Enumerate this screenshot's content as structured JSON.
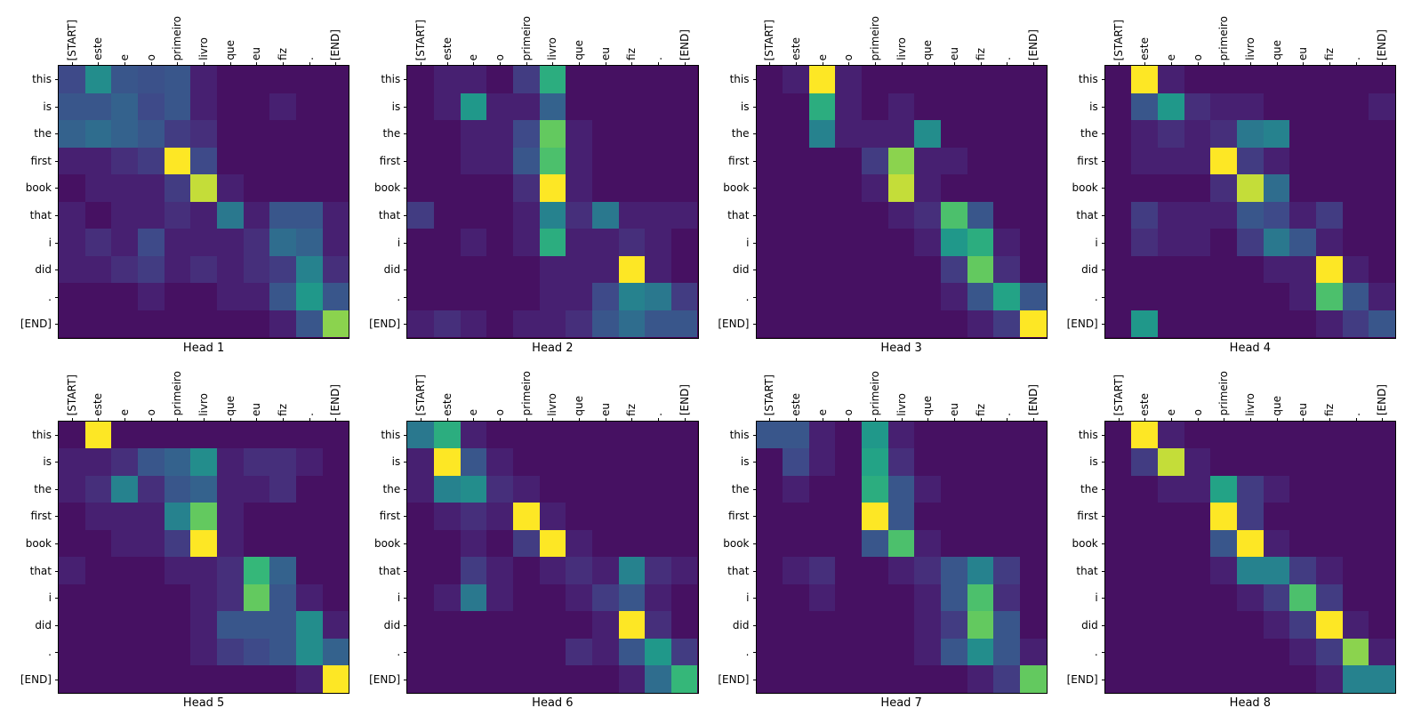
{
  "figure": {
    "background": "#ffffff",
    "text_color": "#000000",
    "colormap": "viridis",
    "colormap_low": "#440154",
    "colormap_high": "#fde725"
  },
  "chart_data": {
    "type": "heatmap",
    "layout": "2x4-grid",
    "x_labels": [
      "[START]",
      "este",
      "e",
      "o",
      "primeiro",
      "livro",
      "que",
      "eu",
      "fiz",
      ".",
      "[END]"
    ],
    "y_labels": [
      "this",
      "is",
      "the",
      "first",
      "book",
      "that",
      "i",
      "did",
      ".",
      "[END]"
    ],
    "value_range": [
      0,
      1
    ],
    "colormap": "viridis",
    "subplots": [
      {
        "title": "Head 1",
        "values": [
          [
            0.25,
            0.55,
            0.3,
            0.28,
            0.3,
            0.1,
            0.05,
            0.05,
            0.05,
            0.05,
            0.05
          ],
          [
            0.3,
            0.3,
            0.35,
            0.25,
            0.3,
            0.1,
            0.05,
            0.05,
            0.1,
            0.05,
            0.05
          ],
          [
            0.35,
            0.4,
            0.35,
            0.3,
            0.2,
            0.15,
            0.05,
            0.05,
            0.05,
            0.05,
            0.05
          ],
          [
            0.1,
            0.1,
            0.15,
            0.2,
            1.0,
            0.25,
            0.05,
            0.05,
            0.05,
            0.05,
            0.05
          ],
          [
            0.05,
            0.1,
            0.1,
            0.1,
            0.2,
            0.95,
            0.1,
            0.05,
            0.05,
            0.05,
            0.05
          ],
          [
            0.1,
            0.05,
            0.1,
            0.1,
            0.15,
            0.1,
            0.45,
            0.1,
            0.3,
            0.3,
            0.1
          ],
          [
            0.1,
            0.15,
            0.1,
            0.25,
            0.1,
            0.1,
            0.1,
            0.15,
            0.4,
            0.35,
            0.1
          ],
          [
            0.1,
            0.1,
            0.15,
            0.2,
            0.1,
            0.15,
            0.1,
            0.15,
            0.2,
            0.5,
            0.15
          ],
          [
            0.05,
            0.05,
            0.05,
            0.1,
            0.05,
            0.05,
            0.1,
            0.1,
            0.3,
            0.6,
            0.3
          ],
          [
            0.05,
            0.05,
            0.05,
            0.05,
            0.05,
            0.05,
            0.05,
            0.05,
            0.1,
            0.3,
            0.9
          ]
        ]
      },
      {
        "title": "Head 2",
        "values": [
          [
            0.05,
            0.1,
            0.1,
            0.05,
            0.2,
            0.7,
            0.05,
            0.05,
            0.05,
            0.05,
            0.05
          ],
          [
            0.05,
            0.1,
            0.6,
            0.1,
            0.1,
            0.35,
            0.05,
            0.05,
            0.05,
            0.05,
            0.05
          ],
          [
            0.05,
            0.05,
            0.1,
            0.1,
            0.25,
            0.85,
            0.1,
            0.05,
            0.05,
            0.05,
            0.05
          ],
          [
            0.05,
            0.05,
            0.1,
            0.1,
            0.3,
            0.8,
            0.1,
            0.05,
            0.05,
            0.05,
            0.05
          ],
          [
            0.05,
            0.05,
            0.05,
            0.05,
            0.15,
            1.0,
            0.1,
            0.05,
            0.05,
            0.05,
            0.05
          ],
          [
            0.2,
            0.05,
            0.05,
            0.05,
            0.1,
            0.5,
            0.15,
            0.45,
            0.1,
            0.1,
            0.1
          ],
          [
            0.05,
            0.05,
            0.1,
            0.05,
            0.1,
            0.7,
            0.1,
            0.1,
            0.15,
            0.1,
            0.05
          ],
          [
            0.05,
            0.05,
            0.05,
            0.05,
            0.05,
            0.1,
            0.1,
            0.1,
            1.0,
            0.1,
            0.05
          ],
          [
            0.05,
            0.05,
            0.05,
            0.05,
            0.05,
            0.1,
            0.1,
            0.25,
            0.5,
            0.45,
            0.2
          ],
          [
            0.1,
            0.15,
            0.1,
            0.05,
            0.1,
            0.1,
            0.15,
            0.3,
            0.4,
            0.3,
            0.3
          ]
        ]
      },
      {
        "title": "Head 3",
        "values": [
          [
            0.05,
            0.1,
            1.0,
            0.1,
            0.05,
            0.05,
            0.05,
            0.05,
            0.05,
            0.05,
            0.05
          ],
          [
            0.05,
            0.05,
            0.7,
            0.1,
            0.05,
            0.1,
            0.05,
            0.05,
            0.05,
            0.05,
            0.05
          ],
          [
            0.05,
            0.05,
            0.5,
            0.1,
            0.1,
            0.1,
            0.55,
            0.05,
            0.05,
            0.05,
            0.05
          ],
          [
            0.05,
            0.05,
            0.05,
            0.05,
            0.2,
            0.9,
            0.1,
            0.1,
            0.05,
            0.05,
            0.05
          ],
          [
            0.05,
            0.05,
            0.05,
            0.05,
            0.1,
            0.95,
            0.1,
            0.05,
            0.05,
            0.05,
            0.05
          ],
          [
            0.05,
            0.05,
            0.05,
            0.05,
            0.05,
            0.1,
            0.15,
            0.8,
            0.3,
            0.05,
            0.05
          ],
          [
            0.05,
            0.05,
            0.05,
            0.05,
            0.05,
            0.05,
            0.1,
            0.6,
            0.7,
            0.1,
            0.05
          ],
          [
            0.05,
            0.05,
            0.05,
            0.05,
            0.05,
            0.05,
            0.05,
            0.2,
            0.85,
            0.15,
            0.05
          ],
          [
            0.05,
            0.05,
            0.05,
            0.05,
            0.05,
            0.05,
            0.05,
            0.1,
            0.3,
            0.65,
            0.3
          ],
          [
            0.05,
            0.05,
            0.05,
            0.05,
            0.05,
            0.05,
            0.05,
            0.05,
            0.1,
            0.2,
            1.0
          ]
        ]
      },
      {
        "title": "Head 4",
        "values": [
          [
            0.05,
            1.0,
            0.1,
            0.05,
            0.05,
            0.05,
            0.05,
            0.05,
            0.05,
            0.05,
            0.05
          ],
          [
            0.05,
            0.3,
            0.6,
            0.15,
            0.1,
            0.1,
            0.05,
            0.05,
            0.05,
            0.05,
            0.1
          ],
          [
            0.05,
            0.1,
            0.15,
            0.1,
            0.15,
            0.45,
            0.5,
            0.05,
            0.05,
            0.05,
            0.05
          ],
          [
            0.05,
            0.1,
            0.1,
            0.1,
            1.0,
            0.2,
            0.1,
            0.05,
            0.05,
            0.05,
            0.05
          ],
          [
            0.05,
            0.05,
            0.05,
            0.05,
            0.15,
            0.95,
            0.4,
            0.05,
            0.05,
            0.05,
            0.05
          ],
          [
            0.05,
            0.2,
            0.1,
            0.1,
            0.1,
            0.3,
            0.25,
            0.1,
            0.2,
            0.05,
            0.05
          ],
          [
            0.05,
            0.15,
            0.1,
            0.1,
            0.05,
            0.2,
            0.45,
            0.3,
            0.1,
            0.05,
            0.05
          ],
          [
            0.05,
            0.05,
            0.05,
            0.05,
            0.05,
            0.05,
            0.1,
            0.1,
            1.0,
            0.1,
            0.05
          ],
          [
            0.05,
            0.05,
            0.05,
            0.05,
            0.05,
            0.05,
            0.05,
            0.1,
            0.8,
            0.3,
            0.1
          ],
          [
            0.05,
            0.6,
            0.05,
            0.05,
            0.05,
            0.05,
            0.05,
            0.05,
            0.1,
            0.2,
            0.3
          ]
        ]
      },
      {
        "title": "Head 5",
        "values": [
          [
            0.05,
            1.0,
            0.05,
            0.05,
            0.05,
            0.05,
            0.05,
            0.05,
            0.05,
            0.05,
            0.05
          ],
          [
            0.1,
            0.1,
            0.15,
            0.3,
            0.35,
            0.55,
            0.1,
            0.15,
            0.15,
            0.1,
            0.05
          ],
          [
            0.1,
            0.15,
            0.5,
            0.15,
            0.3,
            0.35,
            0.1,
            0.1,
            0.15,
            0.05,
            0.05
          ],
          [
            0.05,
            0.1,
            0.1,
            0.1,
            0.5,
            0.85,
            0.1,
            0.05,
            0.05,
            0.05,
            0.05
          ],
          [
            0.05,
            0.05,
            0.1,
            0.1,
            0.2,
            1.0,
            0.1,
            0.05,
            0.05,
            0.05,
            0.05
          ],
          [
            0.1,
            0.05,
            0.05,
            0.05,
            0.1,
            0.1,
            0.15,
            0.75,
            0.35,
            0.05,
            0.05
          ],
          [
            0.05,
            0.05,
            0.05,
            0.05,
            0.05,
            0.1,
            0.15,
            0.85,
            0.3,
            0.1,
            0.05
          ],
          [
            0.05,
            0.05,
            0.05,
            0.05,
            0.05,
            0.1,
            0.3,
            0.3,
            0.3,
            0.55,
            0.1
          ],
          [
            0.05,
            0.05,
            0.05,
            0.05,
            0.05,
            0.1,
            0.2,
            0.25,
            0.3,
            0.55,
            0.35
          ],
          [
            0.05,
            0.05,
            0.05,
            0.05,
            0.05,
            0.05,
            0.05,
            0.05,
            0.05,
            0.1,
            1.0
          ]
        ]
      },
      {
        "title": "Head 6",
        "values": [
          [
            0.45,
            0.7,
            0.1,
            0.05,
            0.05,
            0.05,
            0.05,
            0.05,
            0.05,
            0.05,
            0.05
          ],
          [
            0.1,
            1.0,
            0.3,
            0.1,
            0.05,
            0.05,
            0.05,
            0.05,
            0.05,
            0.05,
            0.05
          ],
          [
            0.1,
            0.5,
            0.55,
            0.15,
            0.1,
            0.05,
            0.05,
            0.05,
            0.05,
            0.05,
            0.05
          ],
          [
            0.05,
            0.1,
            0.15,
            0.1,
            1.0,
            0.1,
            0.05,
            0.05,
            0.05,
            0.05,
            0.05
          ],
          [
            0.05,
            0.05,
            0.1,
            0.05,
            0.2,
            1.0,
            0.1,
            0.05,
            0.05,
            0.05,
            0.05
          ],
          [
            0.05,
            0.05,
            0.2,
            0.1,
            0.05,
            0.1,
            0.15,
            0.1,
            0.5,
            0.15,
            0.1
          ],
          [
            0.05,
            0.1,
            0.45,
            0.1,
            0.05,
            0.05,
            0.1,
            0.2,
            0.3,
            0.1,
            0.05
          ],
          [
            0.05,
            0.05,
            0.05,
            0.05,
            0.05,
            0.05,
            0.05,
            0.1,
            1.0,
            0.15,
            0.05
          ],
          [
            0.05,
            0.05,
            0.05,
            0.05,
            0.05,
            0.05,
            0.15,
            0.1,
            0.3,
            0.6,
            0.2
          ],
          [
            0.05,
            0.05,
            0.05,
            0.05,
            0.05,
            0.05,
            0.05,
            0.05,
            0.1,
            0.4,
            0.75
          ]
        ]
      },
      {
        "title": "Head 7",
        "values": [
          [
            0.3,
            0.3,
            0.1,
            0.05,
            0.6,
            0.1,
            0.05,
            0.05,
            0.05,
            0.05,
            0.05
          ],
          [
            0.05,
            0.25,
            0.1,
            0.05,
            0.65,
            0.15,
            0.05,
            0.05,
            0.05,
            0.05,
            0.05
          ],
          [
            0.05,
            0.1,
            0.05,
            0.05,
            0.7,
            0.3,
            0.1,
            0.05,
            0.05,
            0.05,
            0.05
          ],
          [
            0.05,
            0.05,
            0.05,
            0.05,
            1.0,
            0.3,
            0.05,
            0.05,
            0.05,
            0.05,
            0.05
          ],
          [
            0.05,
            0.05,
            0.05,
            0.05,
            0.3,
            0.8,
            0.1,
            0.05,
            0.05,
            0.05,
            0.05
          ],
          [
            0.05,
            0.1,
            0.15,
            0.05,
            0.05,
            0.1,
            0.15,
            0.3,
            0.5,
            0.2,
            0.05
          ],
          [
            0.05,
            0.05,
            0.1,
            0.05,
            0.05,
            0.05,
            0.1,
            0.3,
            0.8,
            0.15,
            0.05
          ],
          [
            0.05,
            0.05,
            0.05,
            0.05,
            0.05,
            0.05,
            0.1,
            0.2,
            0.85,
            0.3,
            0.05
          ],
          [
            0.05,
            0.05,
            0.05,
            0.05,
            0.05,
            0.05,
            0.1,
            0.3,
            0.55,
            0.3,
            0.1
          ],
          [
            0.05,
            0.05,
            0.05,
            0.05,
            0.05,
            0.05,
            0.05,
            0.05,
            0.1,
            0.2,
            0.85
          ]
        ]
      },
      {
        "title": "Head 8",
        "values": [
          [
            0.05,
            1.0,
            0.1,
            0.05,
            0.05,
            0.05,
            0.05,
            0.05,
            0.05,
            0.05,
            0.05
          ],
          [
            0.05,
            0.2,
            0.95,
            0.1,
            0.05,
            0.05,
            0.05,
            0.05,
            0.05,
            0.05,
            0.05
          ],
          [
            0.05,
            0.05,
            0.1,
            0.1,
            0.65,
            0.2,
            0.1,
            0.05,
            0.05,
            0.05,
            0.05
          ],
          [
            0.05,
            0.05,
            0.05,
            0.05,
            1.0,
            0.2,
            0.05,
            0.05,
            0.05,
            0.05,
            0.05
          ],
          [
            0.05,
            0.05,
            0.05,
            0.05,
            0.3,
            1.0,
            0.1,
            0.05,
            0.05,
            0.05,
            0.05
          ],
          [
            0.05,
            0.05,
            0.05,
            0.05,
            0.1,
            0.5,
            0.5,
            0.2,
            0.1,
            0.05,
            0.05
          ],
          [
            0.05,
            0.05,
            0.05,
            0.05,
            0.05,
            0.1,
            0.2,
            0.8,
            0.2,
            0.05,
            0.05
          ],
          [
            0.05,
            0.05,
            0.05,
            0.05,
            0.05,
            0.05,
            0.1,
            0.2,
            1.0,
            0.1,
            0.05
          ],
          [
            0.05,
            0.05,
            0.05,
            0.05,
            0.05,
            0.05,
            0.05,
            0.1,
            0.2,
            0.9,
            0.1
          ],
          [
            0.05,
            0.05,
            0.05,
            0.05,
            0.05,
            0.05,
            0.05,
            0.05,
            0.1,
            0.5,
            0.5
          ]
        ]
      }
    ]
  }
}
